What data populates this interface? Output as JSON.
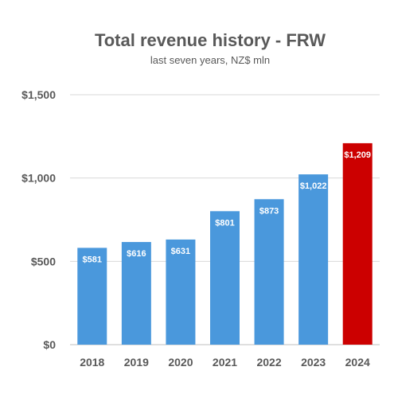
{
  "chart_data": {
    "type": "bar",
    "title": "Total revenue history - FRW",
    "subtitle": "last seven years, NZ$ mln",
    "categories": [
      "2018",
      "2019",
      "2020",
      "2021",
      "2022",
      "2023",
      "2024"
    ],
    "values": [
      581,
      616,
      631,
      801,
      873,
      1022,
      1209
    ],
    "data_labels": [
      "$581",
      "$616",
      "$631",
      "$801",
      "$873",
      "$1,022",
      "$1,209"
    ],
    "ylim": [
      0,
      1500
    ],
    "yticks": [
      0,
      500,
      1000,
      1500
    ],
    "ytick_labels": [
      "$0",
      "$500",
      "$1,000",
      "$1,500"
    ],
    "grid": true,
    "bar_color": "#4a98dc",
    "highlight_color": "#cc0000",
    "highlight_index": 6
  }
}
